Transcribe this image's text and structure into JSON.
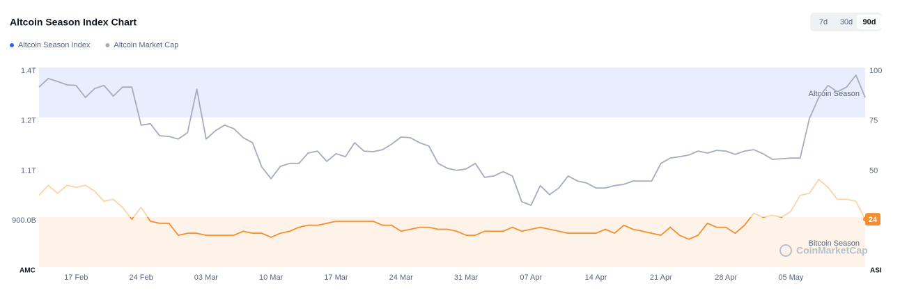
{
  "chart_data": {
    "type": "line",
    "title": "Altcoin Season Index Chart",
    "ranges": [
      "7d",
      "30d",
      "90d"
    ],
    "active_range_index": 2,
    "ylabel": "AMC",
    "y2label": "ASI",
    "watermark": "CoinMarketCap",
    "categories": [
      null,
      null,
      null,
      null,
      "17 Feb",
      null,
      null,
      null,
      null,
      null,
      null,
      "24 Feb",
      null,
      null,
      null,
      null,
      null,
      null,
      "03 Mar",
      null,
      null,
      null,
      null,
      null,
      null,
      "10 Mar",
      null,
      null,
      null,
      null,
      null,
      null,
      "17 Mar",
      null,
      null,
      null,
      null,
      null,
      null,
      "24 Mar",
      null,
      null,
      null,
      null,
      null,
      null,
      "31 Mar",
      null,
      null,
      null,
      null,
      null,
      null,
      "07 Apr",
      null,
      null,
      null,
      null,
      null,
      null,
      "14 Apr",
      null,
      null,
      null,
      null,
      null,
      null,
      "21 Apr",
      null,
      null,
      null,
      null,
      null,
      null,
      "28 Apr",
      null,
      null,
      null,
      null,
      null,
      null,
      "05 May",
      null,
      null,
      null,
      null,
      null,
      null,
      null,
      null
    ],
    "ylim": [
      750,
      1350
    ],
    "yticks": [
      {
        "value": 1350,
        "label": "1.4T"
      },
      {
        "value": 1200,
        "label": "1.2T"
      },
      {
        "value": 1050,
        "label": "1.1T"
      },
      {
        "value": 900,
        "label": "900.0B"
      }
    ],
    "y2lim": [
      0,
      100
    ],
    "y2ticks": [
      50,
      75,
      100
    ],
    "bands": [
      {
        "label": "Altcoin Season",
        "from": 75,
        "to": 100,
        "color": "#e9eefe"
      },
      {
        "label": "Bitcoin Season",
        "from": 0,
        "to": 25,
        "color": "#fef3e8"
      }
    ],
    "series": [
      {
        "name": "Altcoin Season Index",
        "color": "#3861fb",
        "line_colors": [
          "#fdd3a6",
          "#f68d2e"
        ],
        "axis": "y2",
        "values": [
          36,
          41,
          37,
          41,
          40,
          41,
          38,
          33,
          34,
          30,
          24,
          30,
          23,
          22,
          22,
          16,
          17,
          17,
          16,
          16,
          16,
          16,
          18,
          17,
          17,
          15,
          17,
          18,
          20,
          21,
          21,
          22,
          23,
          23,
          23,
          23,
          23,
          21,
          21,
          18,
          19,
          20,
          20,
          19,
          19,
          18,
          16,
          16,
          18,
          18,
          18,
          20,
          18,
          19,
          20,
          19,
          18,
          17,
          17,
          17,
          17,
          19,
          17,
          21,
          19,
          18,
          17,
          16,
          20,
          16,
          14,
          16,
          22,
          20,
          20,
          17,
          21,
          27,
          25,
          26,
          25,
          28,
          36,
          37,
          44,
          40,
          34,
          34,
          33,
          24
        ]
      },
      {
        "name": "Altcoin Market Cap",
        "color": "#a5abc0",
        "axis": "y",
        "values": [
          1291,
          1317,
          1308,
          1298,
          1296,
          1260,
          1287,
          1296,
          1264,
          1291,
          1291,
          1177,
          1181,
          1145,
          1143,
          1135,
          1154,
          1285,
          1135,
          1160,
          1177,
          1166,
          1139,
          1124,
          1051,
          1016,
          1053,
          1062,
          1062,
          1093,
          1099,
          1068,
          1091,
          1082,
          1124,
          1099,
          1097,
          1103,
          1120,
          1141,
          1139,
          1124,
          1114,
          1062,
          1047,
          1041,
          1045,
          1062,
          1020,
          1024,
          1037,
          1024,
          947,
          936,
          995,
          968,
          988,
          1024,
          1009,
          1003,
          988,
          988,
          995,
          999,
          1009,
          1009,
          1009,
          1062,
          1078,
          1082,
          1087,
          1099,
          1093,
          1101,
          1099,
          1089,
          1099,
          1103,
          1091,
          1074,
          1076,
          1078,
          1078,
          1197,
          1260,
          1296,
          1277,
          1291,
          1327,
          1260
        ]
      }
    ]
  }
}
